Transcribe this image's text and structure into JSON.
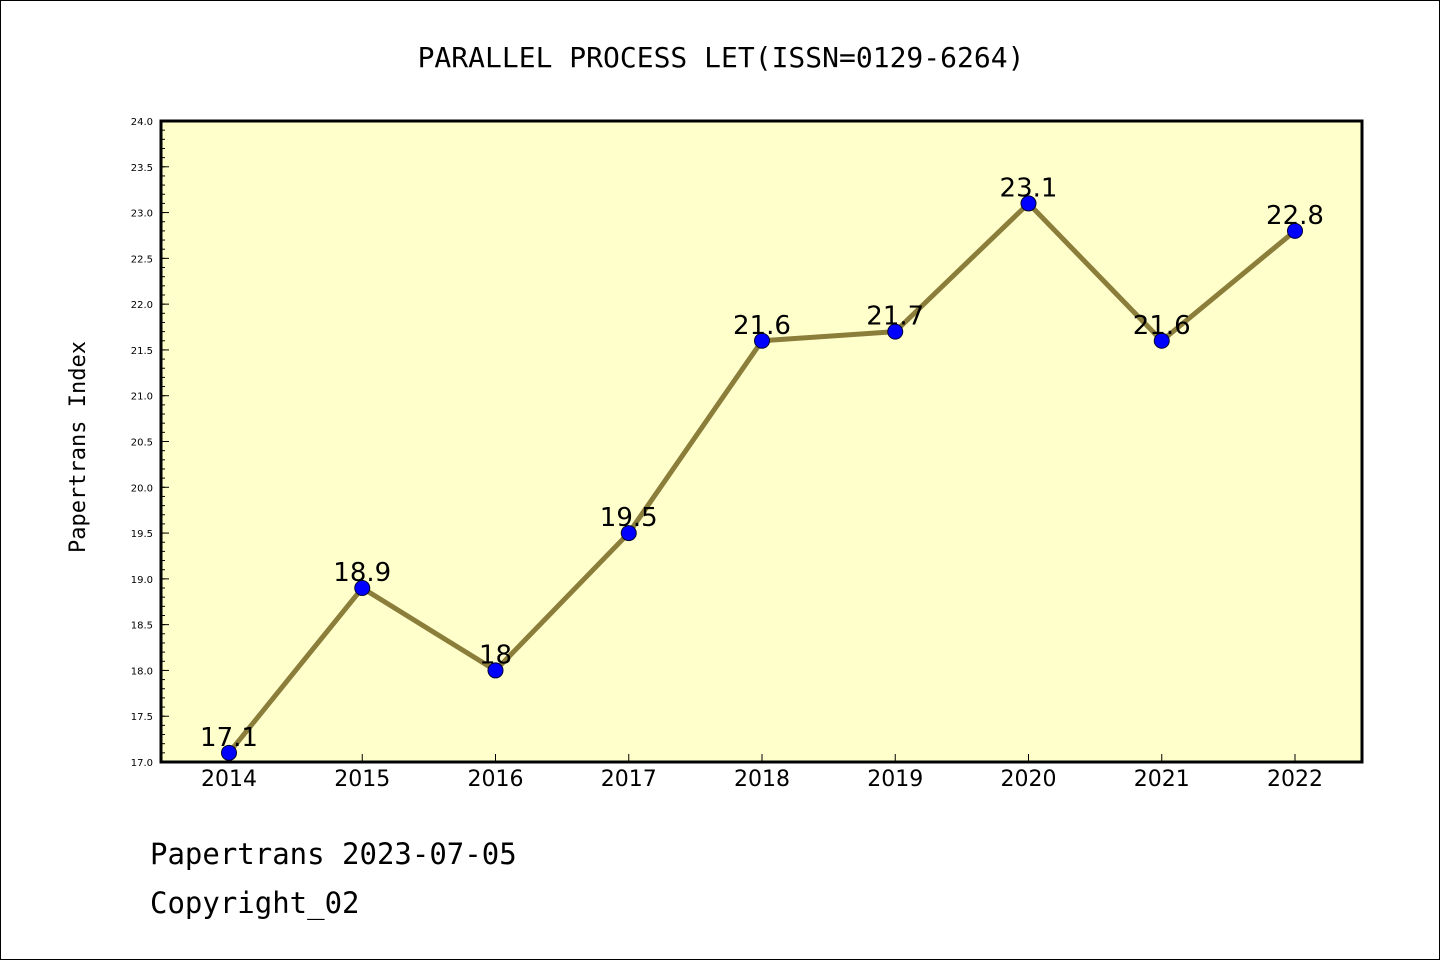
{
  "chart_data": {
    "type": "line",
    "title": "PARALLEL PROCESS LET(ISSN=0129-6264)",
    "xlabel": "",
    "ylabel": "Papertrans Index",
    "categories": [
      "2014",
      "2015",
      "2016",
      "2017",
      "2018",
      "2019",
      "2020",
      "2021",
      "2022"
    ],
    "series": [
      {
        "values": [
          17.1,
          18.9,
          18.0,
          19.5,
          21.6,
          21.7,
          23.1,
          21.6,
          22.8
        ],
        "data_labels": [
          "17.1",
          "18.9",
          "18",
          "19.5",
          "21.6",
          "21.7",
          "23.1",
          "21.6",
          "22.8"
        ]
      }
    ],
    "ylim": [
      17.0,
      24.0
    ],
    "yticks": [
      "17.0",
      "17.5",
      "18.0",
      "18.5",
      "19.0",
      "19.5",
      "20.0",
      "20.5",
      "21.0",
      "21.5",
      "22.0",
      "22.5",
      "23.0",
      "23.5",
      "24.0"
    ],
    "ytick_values": [
      17.0,
      17.5,
      18.0,
      18.5,
      19.0,
      19.5,
      20.0,
      20.5,
      21.0,
      21.5,
      22.0,
      22.5,
      23.0,
      23.5,
      24.0
    ],
    "grid": false,
    "colors": {
      "plot_background": "#ffffcc",
      "line": "#8b7d3a",
      "marker": "#0000ff",
      "frame": "#000000"
    }
  },
  "footer": {
    "line1": "Papertrans 2023-07-05",
    "line2": "Copyright_02"
  }
}
